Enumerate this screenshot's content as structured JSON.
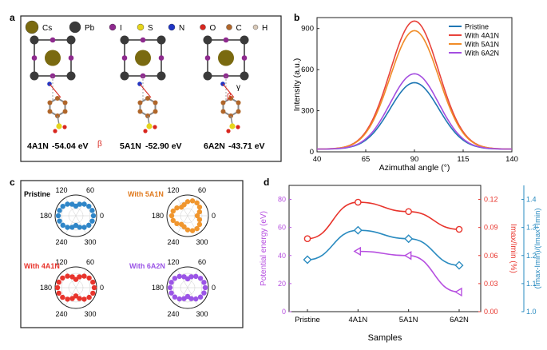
{
  "panel_labels": {
    "a": "a",
    "b": "b",
    "c": "c",
    "d": "d"
  },
  "panel_a": {
    "legend": [
      {
        "symbol": "Cs",
        "color": "#7a6a10"
      },
      {
        "symbol": "Pb",
        "color": "#3a3a3a"
      },
      {
        "symbol": "I",
        "color": "#8e2a8e"
      },
      {
        "symbol": "S",
        "color": "#e6d51c"
      },
      {
        "symbol": "N",
        "color": "#1f35c4"
      },
      {
        "symbol": "O",
        "color": "#d8261e"
      },
      {
        "symbol": "C",
        "color": "#b0662a"
      },
      {
        "symbol": "H",
        "color": "#d9c9b8"
      }
    ],
    "energies": [
      {
        "molecule": "4A1N",
        "value": "-54.04 eV"
      },
      {
        "molecule": "5A1N",
        "value": "-52.90 eV"
      },
      {
        "molecule": "6A2N",
        "value": "-43.71 eV"
      }
    ],
    "angle_labels": [
      "β",
      "γ"
    ]
  },
  "chart_data": [
    {
      "panel": "b",
      "type": "line",
      "xlabel": "Azimuthal angle (°)",
      "ylabel": "Intensity (a.u.)",
      "xlim": [
        40,
        140
      ],
      "ylim": [
        0,
        980
      ],
      "xticks": [
        40,
        65,
        90,
        115,
        140
      ],
      "yticks": [
        0,
        300,
        600,
        900
      ],
      "legend_position": "top-right",
      "series": [
        {
          "name": "Pristine",
          "color": "#1f77b4",
          "center": 90,
          "peak": 505,
          "baseline": 20,
          "sigma": 12.5
        },
        {
          "name": "With 4A1N",
          "color": "#e8433c",
          "center": 90,
          "peak": 955,
          "baseline": 20,
          "sigma": 12.5
        },
        {
          "name": "With 5A1N",
          "color": "#f08c28",
          "center": 90,
          "peak": 885,
          "baseline": 20,
          "sigma": 12.5
        },
        {
          "name": "With 6A2N",
          "color": "#a44ee0",
          "center": 90,
          "peak": 570,
          "baseline": 20,
          "sigma": 12.5
        }
      ]
    },
    {
      "panel": "c",
      "type": "scatter",
      "plots": [
        {
          "name": "Pristine",
          "color": "#2f86c8",
          "label_color": "#000000"
        },
        {
          "name": "With 5A1N",
          "color": "#f0962e",
          "label_color": "#e07a1e"
        },
        {
          "name": "With 4A1N",
          "color": "#e8342c",
          "label_color": "#e8342c"
        },
        {
          "name": "With 6A2N",
          "color": "#9b55e6",
          "label_color": "#9b55e6"
        }
      ],
      "angle_labels": [
        "120",
        "60",
        "180",
        "0",
        "240",
        "300"
      ]
    },
    {
      "panel": "d",
      "type": "line",
      "categories": [
        "Pristine",
        "4A1N",
        "5A1N",
        "6A2N"
      ],
      "xlabel": "Samples",
      "axes": [
        {
          "side": "left",
          "label": "Potential energy (eV)",
          "color": "#b64ee0",
          "ylim": [
            0,
            90
          ],
          "ticks": [
            0,
            20,
            40,
            60,
            80
          ]
        },
        {
          "side": "right-inner",
          "label": "Imax/Imin (%)",
          "color": "#e8342c",
          "ylim": [
            0,
            0.135
          ],
          "ticks": [
            "0.00",
            "0.03",
            "0.06",
            "0.09",
            "0.12"
          ]
        },
        {
          "side": "right-outer",
          "label": "(Imax-Imin)/(Imax+Imin)",
          "color": "#2a8bc0",
          "ylim": [
            1.0,
            1.45
          ],
          "ticks": [
            "1.0",
            "1.1",
            "1.2",
            "1.3",
            "1.4"
          ]
        }
      ],
      "series": [
        {
          "name": "Potential energy",
          "axis": "left",
          "color": "#b64ee0",
          "marker": "triangle",
          "values": [
            null,
            43,
            40,
            14
          ]
        },
        {
          "name": "Imax/Imin",
          "axis": "right-inner",
          "color": "#e8342c",
          "marker": "circle",
          "values": [
            0.078,
            0.117,
            0.107,
            0.088
          ]
        },
        {
          "name": "(Imax-Imin)/(Imax+Imin)",
          "axis": "right-outer",
          "color": "#2a8bc0",
          "marker": "diamond",
          "values": [
            1.185,
            1.29,
            1.26,
            1.165
          ]
        }
      ]
    }
  ]
}
